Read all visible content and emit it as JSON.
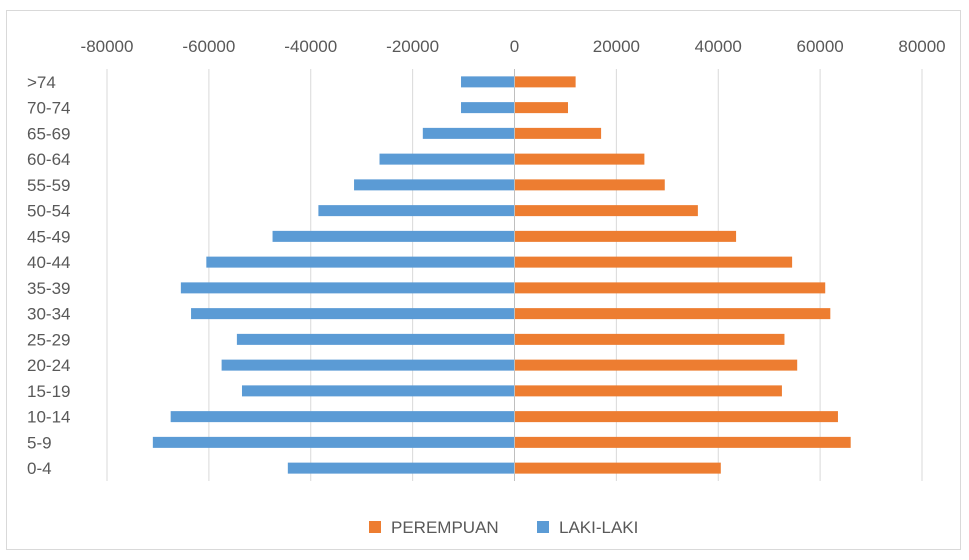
{
  "chart_data": {
    "type": "bar",
    "orientation": "horizontal",
    "title": "",
    "xlabel": "",
    "ylabel": "",
    "categories": [
      ">74",
      "70-74",
      "65-69",
      "60-64",
      "55-59",
      "50-54",
      "45-49",
      "40-44",
      "35-39",
      "30-34",
      "25-29",
      "20-24",
      "15-19",
      "10-14",
      "5-9",
      "0-4"
    ],
    "series": [
      {
        "name": "PEREMPUAN",
        "color": "#ed7d31",
        "values": [
          12000,
          10500,
          17000,
          25500,
          29500,
          36000,
          43500,
          54500,
          61000,
          62000,
          53000,
          55500,
          52500,
          63500,
          66000,
          40500
        ]
      },
      {
        "name": "LAKI-LAKI",
        "color": "#5b9bd5",
        "values": [
          -10500,
          -10500,
          -18000,
          -26500,
          -31500,
          -38500,
          -47500,
          -60500,
          -65500,
          -63500,
          -54500,
          -57500,
          -53500,
          -67500,
          -71000,
          -44500
        ]
      }
    ],
    "xlim": [
      -80000,
      80000
    ],
    "x_ticks": [
      "-80000",
      "-60000",
      "-40000",
      "-20000",
      "0",
      "20000",
      "40000",
      "60000",
      "80000"
    ],
    "x_axis_position": "top",
    "grid": "vertical",
    "grid_color": "#d9d9d9",
    "legend": {
      "placement": "bottom",
      "items": [
        "PEREMPUAN",
        "LAKI-LAKI"
      ]
    }
  }
}
